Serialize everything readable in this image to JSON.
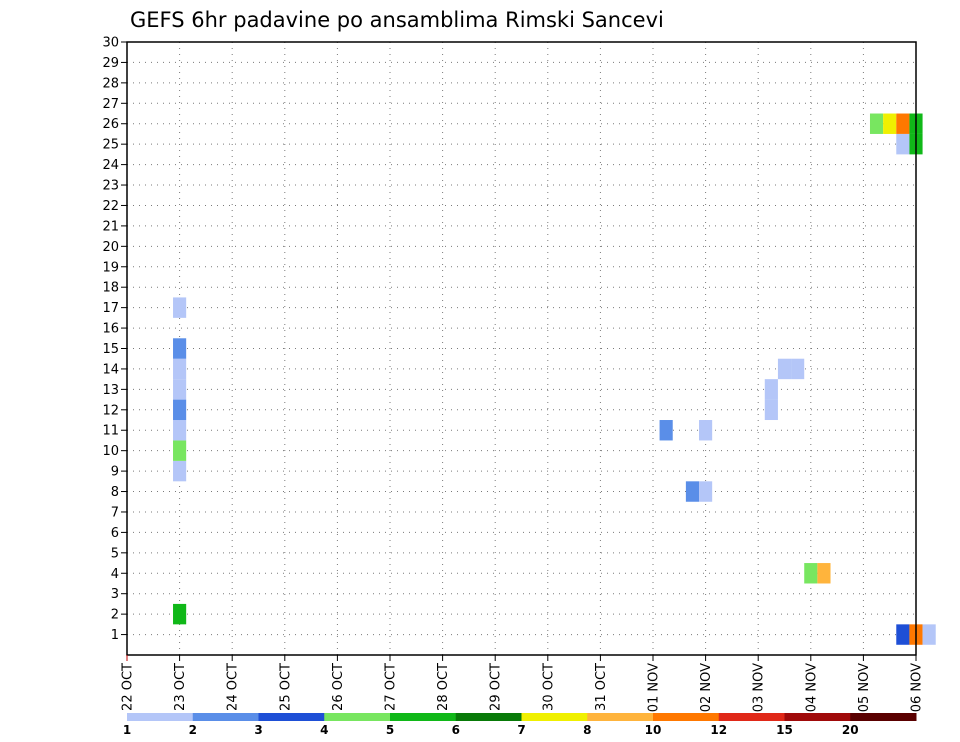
{
  "chart_data": {
    "type": "heatmap",
    "title": "GEFS 6hr padavine po ansamblima Rimski Sancevi",
    "xlabel": "",
    "ylabel": "",
    "x_tick_labels": [
      "22 OCT",
      "23 OCT",
      "24 OCT",
      "25 OCT",
      "26 OCT",
      "27 OCT",
      "28 OCT",
      "29 OCT",
      "30 OCT",
      "31 OCT",
      "01 NOV",
      "02 NOV",
      "03 NOV",
      "04 NOV",
      "05 NOV",
      "06 NOV"
    ],
    "xlim": [
      0,
      15
    ],
    "ylim": [
      0,
      30
    ],
    "y_ticks": [
      1,
      2,
      3,
      4,
      5,
      6,
      7,
      8,
      9,
      10,
      11,
      12,
      13,
      14,
      15,
      16,
      17,
      18,
      19,
      20,
      21,
      22,
      23,
      24,
      25,
      26,
      27,
      28,
      29,
      30
    ],
    "grid": true,
    "time_step_days": 0.25,
    "legend": {
      "position": "bottom",
      "labels": [
        "1",
        "2",
        "3",
        "4",
        "5",
        "6",
        "7",
        "8",
        "10",
        "12",
        "15",
        "20"
      ],
      "colors": [
        "#b4c6f8",
        "#5a8ee8",
        "#1e4fd6",
        "#78e660",
        "#10b818",
        "#087a08",
        "#f0f000",
        "#ffb43c",
        "#ff7800",
        "#e02818",
        "#a00a0a",
        "#5a0000"
      ]
    },
    "cells": [
      {
        "x": 1.0,
        "y": 9,
        "category": 1
      },
      {
        "x": 1.0,
        "y": 10,
        "category": 4
      },
      {
        "x": 1.0,
        "y": 11,
        "category": 1
      },
      {
        "x": 1.0,
        "y": 12,
        "category": 2
      },
      {
        "x": 1.0,
        "y": 13,
        "category": 1
      },
      {
        "x": 1.0,
        "y": 14,
        "category": 1
      },
      {
        "x": 1.0,
        "y": 15,
        "category": 2
      },
      {
        "x": 1.0,
        "y": 17,
        "category": 1
      },
      {
        "x": 1.0,
        "y": 2,
        "category": 5
      },
      {
        "x": 10.25,
        "y": 11,
        "category": 2
      },
      {
        "x": 10.75,
        "y": 8,
        "category": 2
      },
      {
        "x": 11.0,
        "y": 8,
        "category": 1
      },
      {
        "x": 11.0,
        "y": 11,
        "category": 1
      },
      {
        "x": 12.25,
        "y": 12,
        "category": 1
      },
      {
        "x": 12.25,
        "y": 13,
        "category": 1
      },
      {
        "x": 12.5,
        "y": 14,
        "category": 1
      },
      {
        "x": 12.75,
        "y": 14,
        "category": 1
      },
      {
        "x": 13.0,
        "y": 4,
        "category": 4
      },
      {
        "x": 13.25,
        "y": 4,
        "category": 8
      },
      {
        "x": 14.25,
        "y": 26,
        "category": 4
      },
      {
        "x": 14.5,
        "y": 26,
        "category": 7
      },
      {
        "x": 14.75,
        "y": 26,
        "category": 9
      },
      {
        "x": 14.75,
        "y": 25,
        "category": 1
      },
      {
        "x": 15.0,
        "y": 26,
        "category": 5
      },
      {
        "x": 15.0,
        "y": 25,
        "category": 5
      },
      {
        "x": 14.75,
        "y": 1,
        "category": 3
      },
      {
        "x": 15.0,
        "y": 1,
        "category": 9
      },
      {
        "x": 15.25,
        "y": 1,
        "category": 1
      }
    ]
  }
}
